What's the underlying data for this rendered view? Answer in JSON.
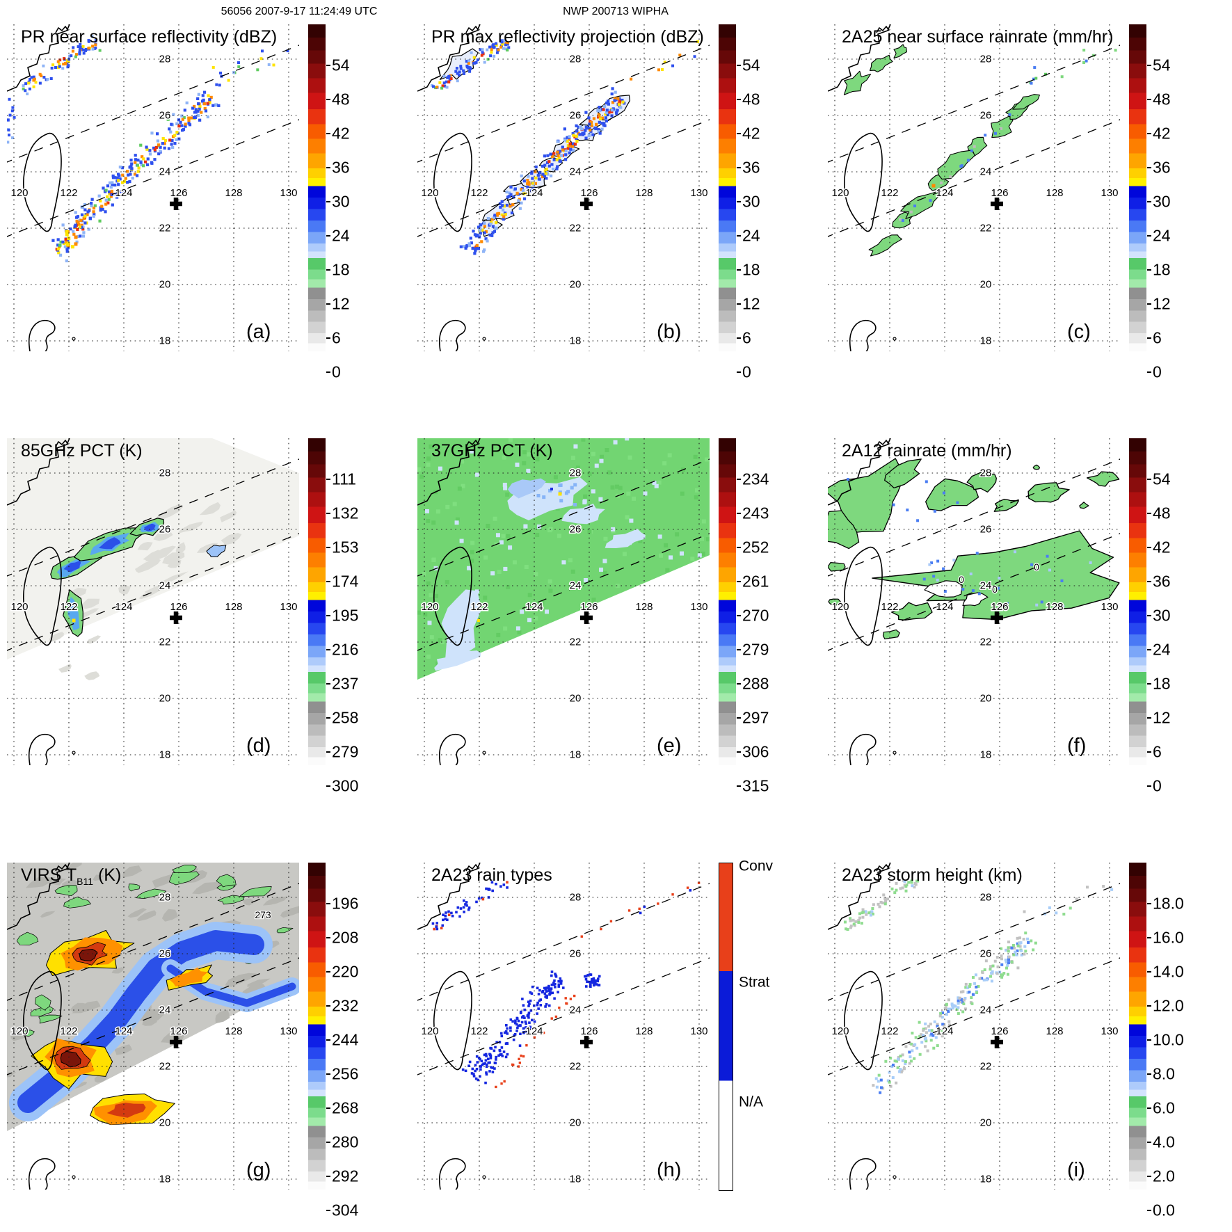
{
  "header": {
    "left": "56056 2007-9-17 11:24:49 UTC",
    "center": "NWP 200713 WIPHA"
  },
  "map": {
    "lon_labels": [
      "120",
      "122",
      "124",
      "126",
      "128",
      "130"
    ],
    "lat_labels": [
      "28",
      "26",
      "24",
      "22",
      "20",
      "18"
    ],
    "marker": "storm-center-cross"
  },
  "contours": {
    "f": "0",
    "g": "273"
  },
  "colors": {
    "spectral_stops": [
      [
        "#330202",
        4
      ],
      [
        "#4d0505",
        8
      ],
      [
        "#660808",
        12
      ],
      [
        "#8a0d0d",
        16.5
      ],
      [
        "#ad1010",
        21
      ],
      [
        "#cf1414",
        26
      ],
      [
        "#e93310",
        30.5
      ],
      [
        "#f85c00",
        35
      ],
      [
        "#fd7f00",
        39.5
      ],
      [
        "#fea500",
        44
      ],
      [
        "#ffd000",
        47
      ],
      [
        "#fff000",
        49.5
      ],
      [
        "#0006db",
        53
      ],
      [
        "#0f1fe6",
        56.5
      ],
      [
        "#2747f0",
        60
      ],
      [
        "#4a79f5",
        63.5
      ],
      [
        "#7ba6f8",
        67
      ],
      [
        "#aecbfb",
        69.5
      ],
      [
        "#d3e3fd",
        71.5
      ],
      [
        "#57c969",
        75
      ],
      [
        "#7cdc8c",
        78
      ],
      [
        "#a2eaaa",
        80.5
      ],
      [
        "#909090",
        84
      ],
      [
        "#a6a6a6",
        87.5
      ],
      [
        "#bcbcbc",
        91
      ],
      [
        "#d2d2d2",
        94.5
      ],
      [
        "#e9e9e9",
        97.5
      ],
      [
        "#fbfbfb",
        100
      ]
    ],
    "raintype": {
      "conv": "#e8401a",
      "strat": "#0b1bd8",
      "na": "#ffffff"
    }
  },
  "chart_data": [
    {
      "type": "heatmap",
      "title": "PR near surface reflectivity (dBZ)",
      "panel": "(a)",
      "legend_position": "right",
      "colorbar_ticks": [
        54,
        48,
        42,
        36,
        30,
        24,
        18,
        12,
        6,
        0
      ],
      "units": "dBZ",
      "region": {
        "lon": [
          120,
          130
        ],
        "lat": [
          18,
          28
        ]
      }
    },
    {
      "type": "heatmap",
      "title": "PR max reflectivity projection (dBZ)",
      "panel": "(b)",
      "legend_position": "right",
      "colorbar_ticks": [
        54,
        48,
        42,
        36,
        30,
        24,
        18,
        12,
        6,
        0
      ],
      "units": "dBZ",
      "region": {
        "lon": [
          120,
          130
        ],
        "lat": [
          18,
          28
        ]
      }
    },
    {
      "type": "heatmap",
      "title": "2A25 near surface rainrate (mm/hr)",
      "panel": "(c)",
      "legend_position": "right",
      "colorbar_ticks": [
        54,
        48,
        42,
        36,
        30,
        24,
        18,
        12,
        6,
        0
      ],
      "units": "mm/hr",
      "region": {
        "lon": [
          120,
          130
        ],
        "lat": [
          18,
          28
        ]
      }
    },
    {
      "type": "heatmap",
      "title": "85GHz PCT (K)",
      "panel": "(d)",
      "legend_position": "right",
      "colorbar_ticks": [
        111,
        132,
        153,
        174,
        195,
        216,
        237,
        258,
        279,
        300
      ],
      "units": "K",
      "region": {
        "lon": [
          120,
          130
        ],
        "lat": [
          18,
          28
        ]
      }
    },
    {
      "type": "heatmap",
      "title": "37GHz PCT (K)",
      "panel": "(e)",
      "legend_position": "right",
      "colorbar_ticks": [
        234,
        243,
        252,
        261,
        270,
        279,
        288,
        297,
        306,
        315
      ],
      "units": "K",
      "region": {
        "lon": [
          120,
          130
        ],
        "lat": [
          18,
          28
        ]
      }
    },
    {
      "type": "heatmap",
      "title": "2A12 rainrate (mm/hr)",
      "panel": "(f)",
      "legend_position": "right",
      "colorbar_ticks": [
        54,
        48,
        42,
        36,
        30,
        24,
        18,
        12,
        6,
        0
      ],
      "units": "mm/hr",
      "contour_label": "0",
      "region": {
        "lon": [
          120,
          130
        ],
        "lat": [
          18,
          28
        ]
      }
    },
    {
      "type": "heatmap",
      "title": "VIRS TB11 (K)",
      "panel": "(g)",
      "legend_position": "right",
      "colorbar_ticks": [
        196,
        208,
        220,
        232,
        244,
        256,
        268,
        280,
        292,
        304
      ],
      "units": "K",
      "contour_label": "273",
      "region": {
        "lon": [
          120,
          130
        ],
        "lat": [
          18,
          28
        ]
      }
    },
    {
      "type": "heatmap",
      "title": "2A23 rain types",
      "panel": "(h)",
      "legend_position": "right",
      "categories": [
        "Conv",
        "Strat",
        "N/A"
      ],
      "region": {
        "lon": [
          120,
          130
        ],
        "lat": [
          18,
          28
        ]
      }
    },
    {
      "type": "heatmap",
      "title": "2A23 storm height (km)",
      "panel": "(i)",
      "legend_position": "right",
      "colorbar_ticks": [
        18.0,
        16.0,
        14.0,
        12.0,
        10.0,
        8.0,
        6.0,
        4.0,
        2.0,
        0.0
      ],
      "units": "km",
      "region": {
        "lon": [
          120,
          130
        ],
        "lat": [
          18,
          28
        ]
      }
    }
  ],
  "panels": [
    {
      "id": "a",
      "letter": "(a)",
      "title": "PR near surface reflectivity (dBZ)",
      "colorbar": {
        "type": "spectral",
        "labels": [
          "54",
          "48",
          "42",
          "36",
          "30",
          "24",
          "18",
          "12",
          "6",
          "0"
        ]
      }
    },
    {
      "id": "b",
      "letter": "(b)",
      "title": "PR max reflectivity projection (dBZ)",
      "colorbar": {
        "type": "spectral",
        "labels": [
          "54",
          "48",
          "42",
          "36",
          "30",
          "24",
          "18",
          "12",
          "6",
          "0"
        ]
      }
    },
    {
      "id": "c",
      "letter": "(c)",
      "title": "2A25 near surface rainrate (mm/hr)",
      "colorbar": {
        "type": "spectral",
        "labels": [
          "54",
          "48",
          "42",
          "36",
          "30",
          "24",
          "18",
          "12",
          "6",
          "0"
        ]
      }
    },
    {
      "id": "d",
      "letter": "(d)",
      "title": "85GHz PCT (K)",
      "colorbar": {
        "type": "spectral",
        "labels": [
          "111",
          "132",
          "153",
          "174",
          "195",
          "216",
          "237",
          "258",
          "279",
          "300"
        ]
      }
    },
    {
      "id": "e",
      "letter": "(e)",
      "title": "37GHz PCT (K)",
      "colorbar": {
        "type": "spectral",
        "labels": [
          "234",
          "243",
          "252",
          "261",
          "270",
          "279",
          "288",
          "297",
          "306",
          "315"
        ]
      }
    },
    {
      "id": "f",
      "letter": "(f)",
      "title": "2A12 rainrate (mm/hr)",
      "colorbar": {
        "type": "spectral",
        "labels": [
          "54",
          "48",
          "42",
          "36",
          "30",
          "24",
          "18",
          "12",
          "6",
          "0"
        ]
      }
    },
    {
      "id": "g",
      "letter": "(g)",
      "title": "VIRS T",
      "title_sub": "B11",
      "title_tail": " (K)",
      "colorbar": {
        "type": "spectral",
        "labels": [
          "196",
          "208",
          "220",
          "232",
          "244",
          "256",
          "268",
          "280",
          "292",
          "304"
        ]
      }
    },
    {
      "id": "h",
      "letter": "(h)",
      "title": "2A23 rain types",
      "colorbar": {
        "type": "raintype",
        "labels": [
          "Conv",
          "Strat",
          "N/A"
        ]
      }
    },
    {
      "id": "i",
      "letter": "(i)",
      "title": "2A23 storm height (km)",
      "colorbar": {
        "type": "spectral",
        "labels": [
          "18.0",
          "16.0",
          "14.0",
          "12.0",
          "10.0",
          "8.0",
          "6.0",
          "4.0",
          "2.0",
          "0.0"
        ]
      }
    }
  ]
}
